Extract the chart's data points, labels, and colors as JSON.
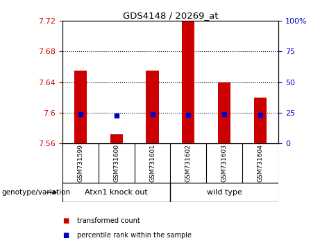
{
  "title": "GDS4148 / 20269_at",
  "samples": [
    "GSM731599",
    "GSM731600",
    "GSM731601",
    "GSM731602",
    "GSM731603",
    "GSM731604"
  ],
  "transformed_counts": [
    7.655,
    7.572,
    7.655,
    7.72,
    7.64,
    7.62
  ],
  "percentile_ranks": [
    7.598,
    7.596,
    7.598,
    7.597,
    7.598,
    7.597
  ],
  "ylim_left": [
    7.56,
    7.72
  ],
  "ylim_right": [
    0,
    100
  ],
  "yticks_left": [
    7.56,
    7.6,
    7.64,
    7.68,
    7.72
  ],
  "yticks_right": [
    0,
    25,
    50,
    75,
    100
  ],
  "ytick_labels_left": [
    "7.56",
    "7.6",
    "7.64",
    "7.68",
    "7.72"
  ],
  "ytick_labels_right": [
    "0",
    "25",
    "50",
    "75",
    "100%"
  ],
  "hlines": [
    7.6,
    7.64,
    7.68
  ],
  "groups": [
    {
      "label": "Atxn1 knock out",
      "span": [
        0,
        2
      ]
    },
    {
      "label": "wild type",
      "span": [
        3,
        5
      ]
    }
  ],
  "group_label": "genotype/variation",
  "bar_color": "#CC0000",
  "marker_color": "#0000CC",
  "bar_width": 0.35,
  "background_color": "#FFFFFF",
  "plot_bg_color": "#FFFFFF",
  "tick_color_left": "#CC0000",
  "tick_color_right": "#0000CC",
  "sample_box_color": "#C8C8C8",
  "group_box_color": "#90EE90",
  "legend_items": [
    {
      "color": "#CC0000",
      "label": "transformed count"
    },
    {
      "color": "#0000CC",
      "label": "percentile rank within the sample"
    }
  ],
  "n_samples": 6
}
